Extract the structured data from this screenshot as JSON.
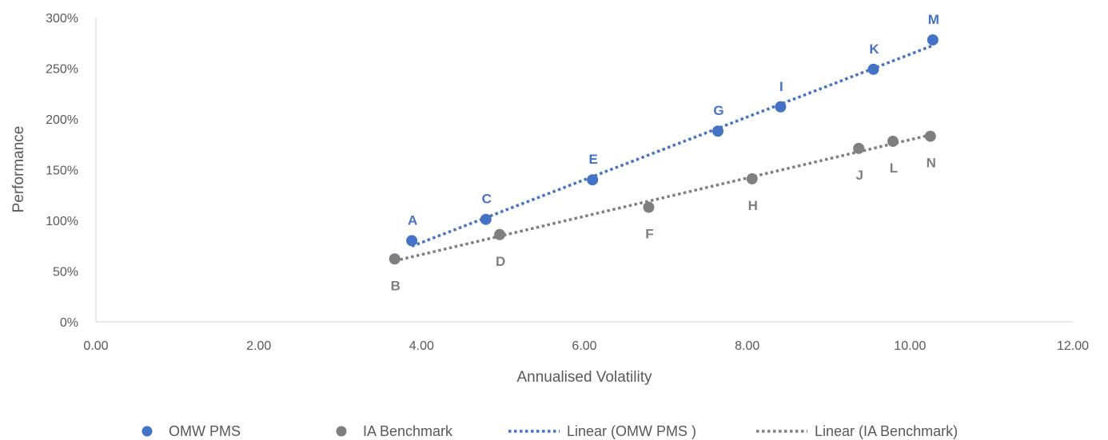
{
  "chart_data": {
    "type": "scatter",
    "title": "",
    "xlabel": "Annualised Volatility",
    "ylabel": "Performance",
    "xlim": [
      0,
      12
    ],
    "ylim": [
      0,
      300
    ],
    "x_ticks": [
      0,
      2,
      4,
      6,
      8,
      10,
      12
    ],
    "x_tick_labels": [
      "0.00",
      "2.00",
      "4.00",
      "6.00",
      "8.00",
      "10.00",
      "12.00"
    ],
    "y_ticks": [
      0,
      50,
      100,
      150,
      200,
      250,
      300
    ],
    "y_tick_labels": [
      "0%",
      "50%",
      "100%",
      "150%",
      "200%",
      "250%",
      "300%"
    ],
    "grid": false,
    "legend_position": "bottom",
    "series": [
      {
        "name": "OMW PMS",
        "color": "#4472c4",
        "label_position": "above",
        "points": [
          {
            "label": "A",
            "x": 3.88,
            "y": 80
          },
          {
            "label": "C",
            "x": 4.79,
            "y": 101
          },
          {
            "label": "E",
            "x": 6.1,
            "y": 140
          },
          {
            "label": "G",
            "x": 7.64,
            "y": 188
          },
          {
            "label": "I",
            "x": 8.41,
            "y": 212
          },
          {
            "label": "K",
            "x": 9.55,
            "y": 249
          },
          {
            "label": "M",
            "x": 10.28,
            "y": 278
          }
        ]
      },
      {
        "name": "IA Benchmark",
        "color": "#7f7f7f",
        "label_position": "below",
        "points": [
          {
            "label": "B",
            "x": 3.67,
            "y": 62
          },
          {
            "label": "D",
            "x": 4.96,
            "y": 86
          },
          {
            "label": "F",
            "x": 6.79,
            "y": 113
          },
          {
            "label": "H",
            "x": 8.06,
            "y": 141
          },
          {
            "label": "J",
            "x": 9.37,
            "y": 171
          },
          {
            "label": "L",
            "x": 9.79,
            "y": 178
          },
          {
            "label": "N",
            "x": 10.25,
            "y": 183
          }
        ]
      }
    ],
    "trendlines": [
      {
        "name": "Linear (OMW PMS )",
        "series_index": 0,
        "type": "linear",
        "color": "#4472c4",
        "style": "dotted"
      },
      {
        "name": "Linear (IA Benchmark)",
        "series_index": 1,
        "type": "linear",
        "color": "#7f7f7f",
        "style": "dotted"
      }
    ]
  }
}
